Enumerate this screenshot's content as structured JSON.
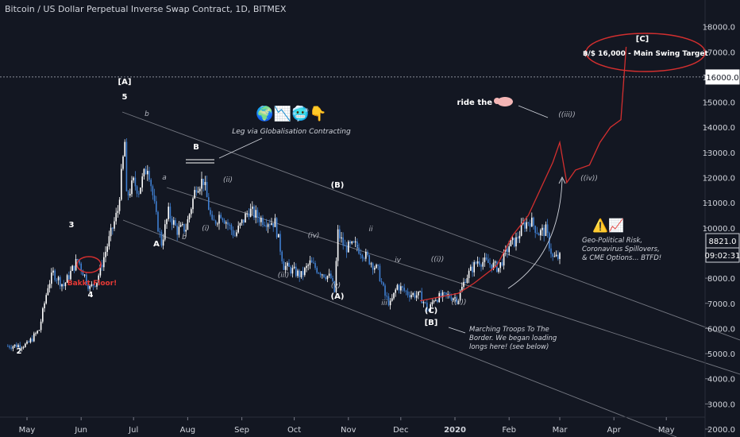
{
  "chart_title": "Bitcoin / US Dollar Perpetual Inverse Swap Contract, 1D, BITMEX",
  "colors": {
    "background": "#131722",
    "candle_up": "#ffffff",
    "candle_down": "#3f7fd1",
    "projection": "#d32f2f",
    "channel": "#9598a1",
    "axis_text": "#d1d4dc"
  },
  "price_badges": {
    "last_price": "8821.0",
    "countdown": "09:02:31",
    "target_price": "16000.0"
  },
  "annotations": {
    "wave_labels": [
      "[A]",
      "5",
      "3",
      "4",
      "2",
      "b",
      "a",
      "A",
      "b",
      "B",
      "(ii)",
      "(i)",
      "(iii)",
      "(iv)",
      "(v)",
      "(B)",
      "(A)",
      "ii",
      "i",
      "iii",
      "iv",
      "((i))",
      "((ii))",
      "(C)",
      "[B]",
      "[C]",
      "((iii))",
      "((iv))"
    ],
    "emoji_row": "🌍📉🥶👇",
    "leg_note": "Leg via Globalisation Contracting",
    "ride_the": "ride the",
    "pig_icon": "pig-emoji",
    "target_label": "฿/$ 16,000 - Main Swing Target",
    "bakkt_label": "Bakkt Floor!",
    "marching_note": [
      "Marching Troops To The",
      "Border. We began loading",
      "longs here! (see below)"
    ],
    "warning_icons": "⚠️📈",
    "geo_note": [
      "Geo-Political Risk,",
      "Coronavirus Spillovers,",
      "& CME Options... BTFD!"
    ]
  },
  "chart_data": {
    "type": "candlestick",
    "title": "Bitcoin / US Dollar Perpetual Inverse Swap Contract, 1D, BITMEX",
    "x_labels": [
      "May",
      "Jun",
      "Jul",
      "Aug",
      "Sep",
      "Oct",
      "Nov",
      "Dec",
      "2020",
      "Feb",
      "Mar",
      "Apr",
      "May"
    ],
    "y_ticks": [
      2000,
      3000,
      4000,
      5000,
      6000,
      7000,
      8000,
      9000,
      10000,
      11000,
      12000,
      13000,
      14000,
      15000,
      16000,
      17000,
      18000
    ],
    "ylim": [
      2000,
      18300
    ],
    "grid": false,
    "price_path": [
      {
        "date": "2019-04-20",
        "price": 5300
      },
      {
        "date": "2019-05-01",
        "price": 5350
      },
      {
        "date": "2019-05-08",
        "price": 5950
      },
      {
        "date": "2019-05-13",
        "price": 7700
      },
      {
        "date": "2019-05-16",
        "price": 8200
      },
      {
        "date": "2019-05-22",
        "price": 7700
      },
      {
        "date": "2019-05-30",
        "price": 8750
      },
      {
        "date": "2019-06-06",
        "price": 7600
      },
      {
        "date": "2019-06-10",
        "price": 7900
      },
      {
        "date": "2019-06-16",
        "price": 9300
      },
      {
        "date": "2019-06-22",
        "price": 10700
      },
      {
        "date": "2019-06-26",
        "price": 13400
      },
      {
        "date": "2019-06-27",
        "price": 11200
      },
      {
        "date": "2019-07-01",
        "price": 11800
      },
      {
        "date": "2019-07-04",
        "price": 11500
      },
      {
        "date": "2019-07-09",
        "price": 12500
      },
      {
        "date": "2019-07-10",
        "price": 12200
      },
      {
        "date": "2019-07-14",
        "price": 10400
      },
      {
        "date": "2019-07-17",
        "price": 9400
      },
      {
        "date": "2019-07-21",
        "price": 10600
      },
      {
        "date": "2019-07-26",
        "price": 9900
      },
      {
        "date": "2019-07-31",
        "price": 10000
      },
      {
        "date": "2019-08-06",
        "price": 11700
      },
      {
        "date": "2019-08-10",
        "price": 11900
      },
      {
        "date": "2019-08-15",
        "price": 10100
      },
      {
        "date": "2019-08-20",
        "price": 10600
      },
      {
        "date": "2019-08-28",
        "price": 9700
      },
      {
        "date": "2019-09-05",
        "price": 10700
      },
      {
        "date": "2019-09-12",
        "price": 10350
      },
      {
        "date": "2019-09-20",
        "price": 10200
      },
      {
        "date": "2019-09-25",
        "price": 8500
      },
      {
        "date": "2019-10-05",
        "price": 8100
      },
      {
        "date": "2019-10-10",
        "price": 8600
      },
      {
        "date": "2019-10-15",
        "price": 8300
      },
      {
        "date": "2019-10-22",
        "price": 8000
      },
      {
        "date": "2019-10-24",
        "price": 7450
      },
      {
        "date": "2019-10-26",
        "price": 9800
      },
      {
        "date": "2019-10-30",
        "price": 9200
      },
      {
        "date": "2019-11-05",
        "price": 9300
      },
      {
        "date": "2019-11-12",
        "price": 8800
      },
      {
        "date": "2019-11-18",
        "price": 8300
      },
      {
        "date": "2019-11-22",
        "price": 7300
      },
      {
        "date": "2019-11-25",
        "price": 6950
      },
      {
        "date": "2019-11-29",
        "price": 7700
      },
      {
        "date": "2019-12-05",
        "price": 7400
      },
      {
        "date": "2019-12-12",
        "price": 7300
      },
      {
        "date": "2019-12-17",
        "price": 6700
      },
      {
        "date": "2019-12-20",
        "price": 7200
      },
      {
        "date": "2019-12-28",
        "price": 7300
      },
      {
        "date": "2020-01-03",
        "price": 7200
      },
      {
        "date": "2020-01-07",
        "price": 8000
      },
      {
        "date": "2020-01-14",
        "price": 8700
      },
      {
        "date": "2020-01-20",
        "price": 8600
      },
      {
        "date": "2020-01-26",
        "price": 8400
      },
      {
        "date": "2020-02-01",
        "price": 9300
      },
      {
        "date": "2020-02-05",
        "price": 9500
      },
      {
        "date": "2020-02-09",
        "price": 10100
      },
      {
        "date": "2020-02-13",
        "price": 10300
      },
      {
        "date": "2020-02-18",
        "price": 9800
      },
      {
        "date": "2020-02-22",
        "price": 9900
      },
      {
        "date": "2020-02-26",
        "price": 8800
      },
      {
        "date": "2020-03-01",
        "price": 8821
      }
    ],
    "projection": [
      {
        "date": "2019-12-12",
        "price": 7100
      },
      {
        "date": "2020-01-03",
        "price": 7400
      },
      {
        "date": "2020-01-12",
        "price": 7800
      },
      {
        "date": "2020-01-25",
        "price": 8500
      },
      {
        "date": "2020-02-03",
        "price": 9700
      },
      {
        "date": "2020-02-12",
        "price": 10500
      },
      {
        "date": "2020-02-26",
        "price": 12600
      },
      {
        "date": "2020-03-01",
        "price": 13400
      },
      {
        "date": "2020-03-05",
        "price": 11800
      },
      {
        "date": "2020-03-10",
        "price": 12300
      },
      {
        "date": "2020-03-18",
        "price": 12500
      },
      {
        "date": "2020-03-24",
        "price": 13400
      },
      {
        "date": "2020-03-30",
        "price": 14000
      },
      {
        "date": "2020-04-05",
        "price": 14300
      },
      {
        "date": "2020-04-08",
        "price": 17200
      }
    ],
    "target_level": 16000,
    "last_price": 8821
  }
}
